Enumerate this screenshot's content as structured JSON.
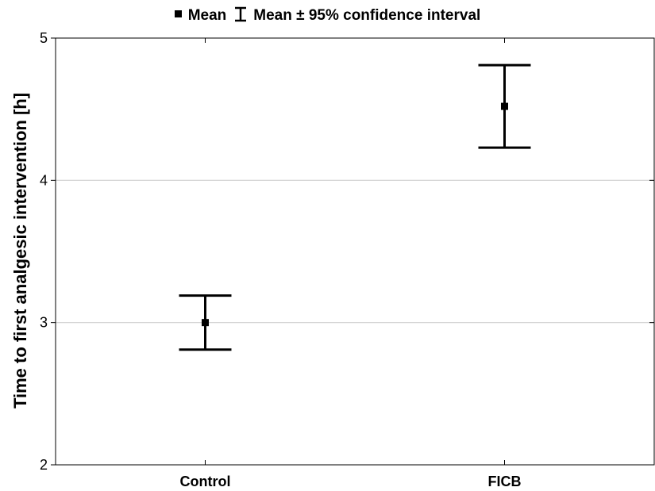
{
  "chart_data": {
    "type": "errorbar",
    "title": "",
    "legend": {
      "position": "top-center",
      "mean_label": "Mean",
      "ci_label": "Mean ± 95% confidence interval"
    },
    "xlabel": "",
    "ylabel": "Time to first analgesic intervention [h]",
    "categories": [
      "Control",
      "FICB"
    ],
    "mean": [
      3.0,
      4.52
    ],
    "ci_lower": [
      2.81,
      4.23
    ],
    "ci_upper": [
      3.19,
      4.81
    ],
    "ylim": [
      2,
      5
    ],
    "yticks": [
      2,
      3,
      4,
      5
    ],
    "grid": "horizontal",
    "colors": {
      "marks": "#000000",
      "grid": "#cfcfcf",
      "axis": "#000000"
    }
  }
}
